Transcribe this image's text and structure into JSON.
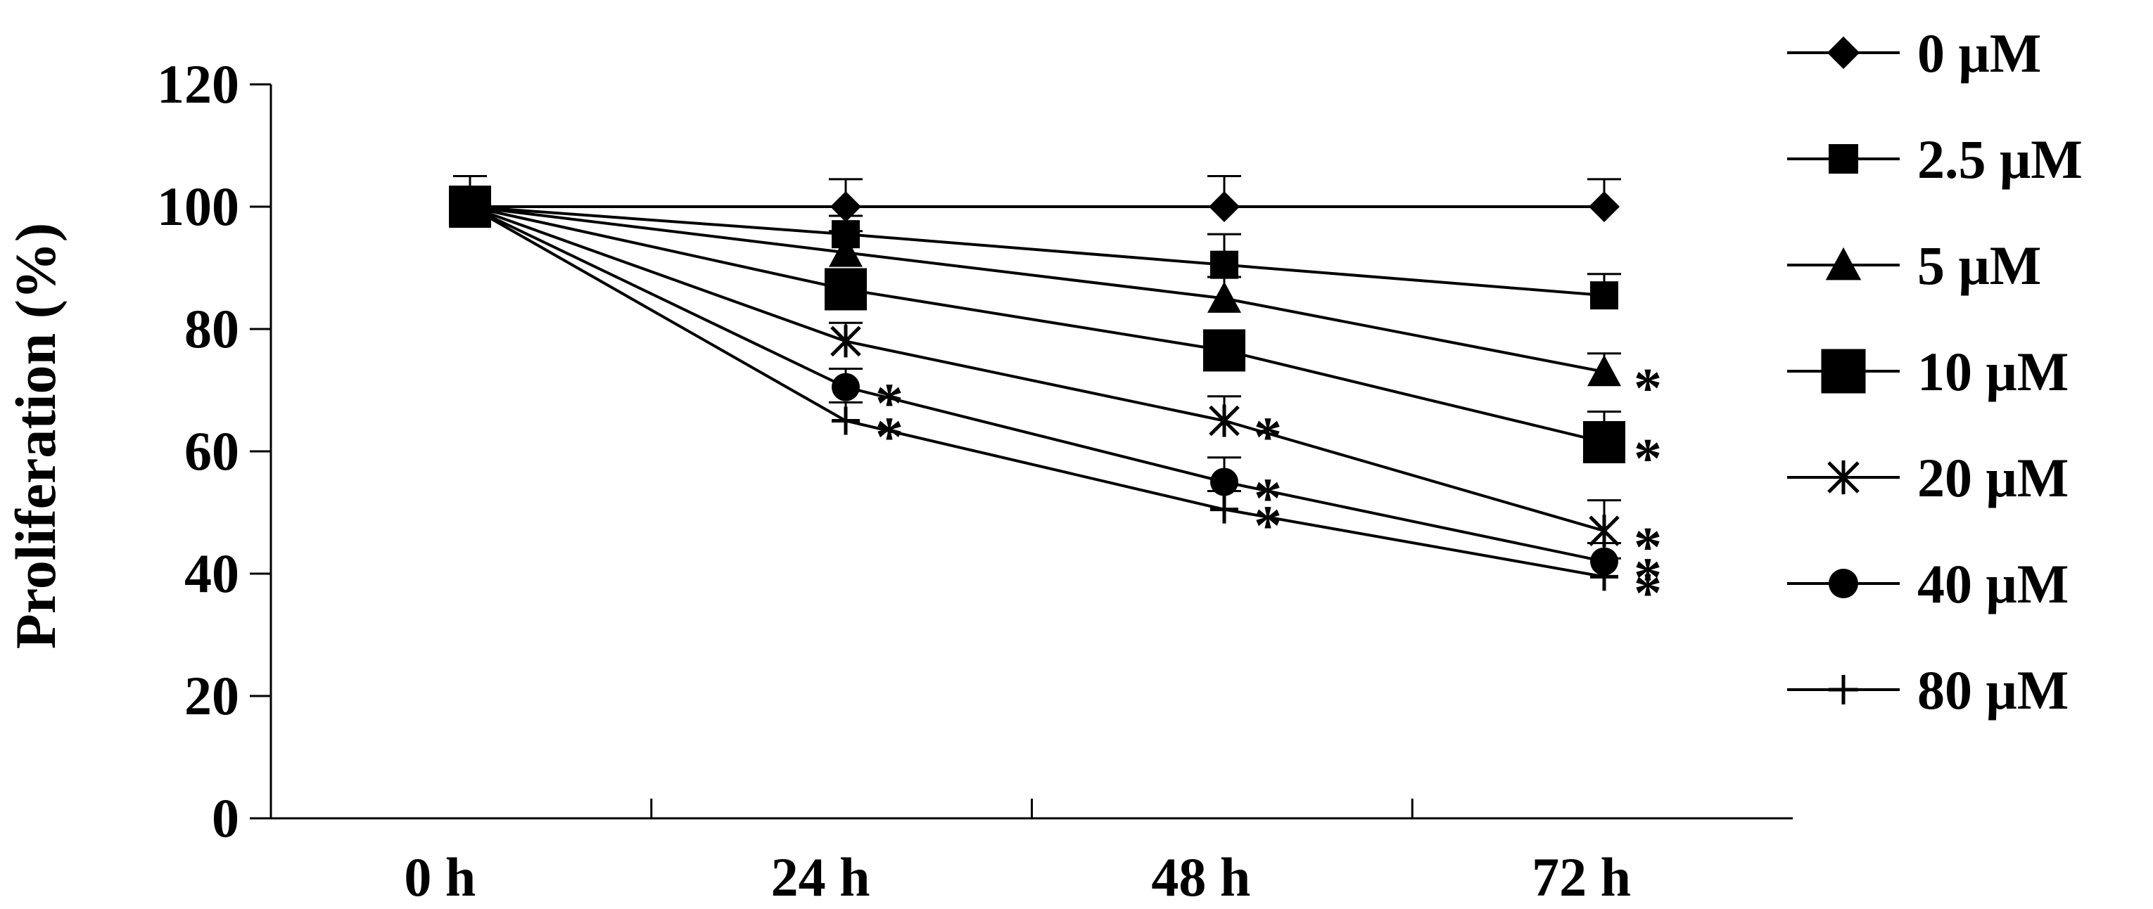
{
  "chart_data": {
    "type": "line",
    "ylabel": "Proliferation (%)",
    "xlabel": "",
    "title": "",
    "ylim": [
      0,
      120
    ],
    "yticks": [
      "0",
      "20",
      "40",
      "60",
      "80",
      "100",
      "120"
    ],
    "categories": [
      "0 h",
      "24 h",
      "48 h",
      "72 h"
    ],
    "grid": false,
    "legend_position": "right",
    "series": [
      {
        "name": "0 μM",
        "marker": "diamond",
        "values": [
          100,
          100,
          100,
          100
        ],
        "errors": [
          5,
          4.5,
          5,
          4.5
        ],
        "significance": [
          "",
          "",
          "",
          ""
        ]
      },
      {
        "name": "2.5 μM",
        "marker": "square-small",
        "values": [
          100,
          95.5,
          90.5,
          85.5
        ],
        "errors": [
          5,
          3,
          5,
          3.5
        ],
        "significance": [
          "",
          "",
          "",
          ""
        ]
      },
      {
        "name": "5 μM",
        "marker": "triangle",
        "values": [
          100,
          92.5,
          85,
          73
        ],
        "errors": [
          5,
          3.5,
          3.5,
          3
        ],
        "significance": [
          "",
          "",
          "",
          "*"
        ]
      },
      {
        "name": "10 μM",
        "marker": "square-large",
        "values": [
          100,
          86.5,
          76.5,
          61.5
        ],
        "errors": [
          5,
          3,
          3,
          5
        ],
        "significance": [
          "",
          "",
          "",
          "*"
        ]
      },
      {
        "name": "20 μM",
        "marker": "asterisk",
        "values": [
          100,
          78,
          65,
          47
        ],
        "errors": [
          5,
          3,
          4,
          5
        ],
        "significance": [
          "",
          "",
          "*",
          "*"
        ]
      },
      {
        "name": "40 μM",
        "marker": "circle",
        "values": [
          100,
          70.5,
          55,
          42
        ],
        "errors": [
          5,
          3,
          4,
          3
        ],
        "significance": [
          "",
          "*",
          "*",
          "*"
        ]
      },
      {
        "name": "80 μM",
        "marker": "plus",
        "values": [
          100,
          65,
          50.5,
          39.5
        ],
        "errors": [
          5,
          3,
          3,
          3
        ],
        "significance": [
          "",
          "*",
          "*",
          "*"
        ]
      }
    ]
  }
}
